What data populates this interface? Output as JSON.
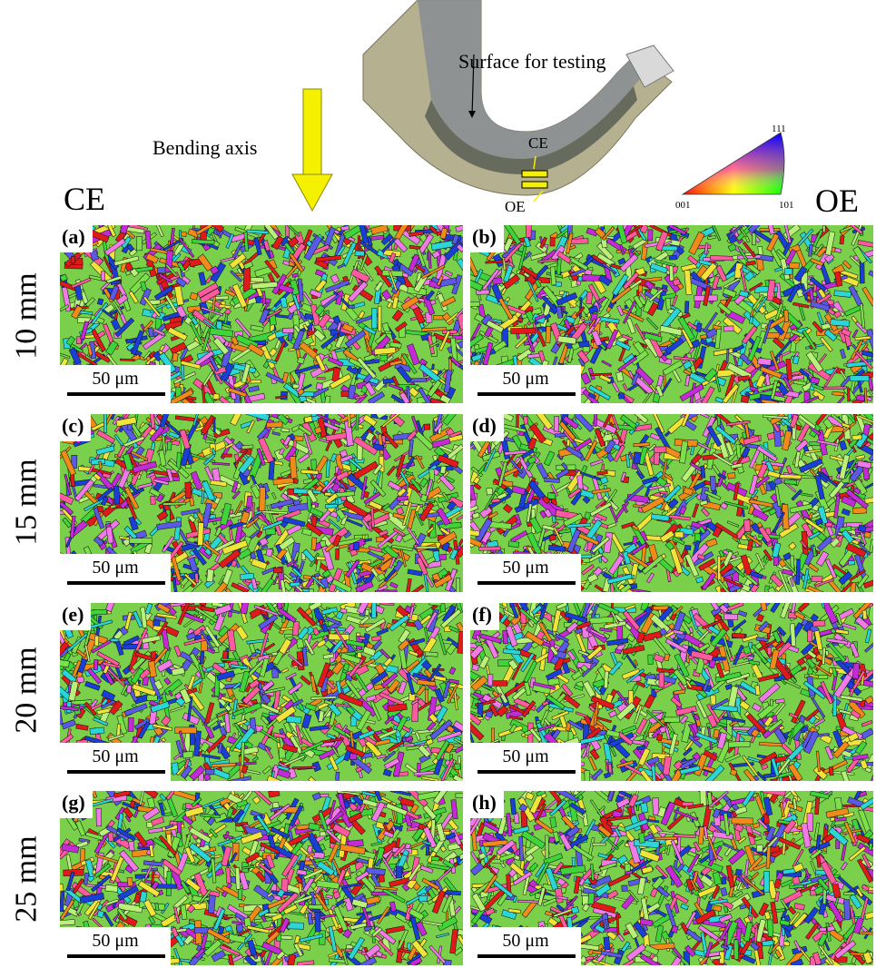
{
  "figure": {
    "bending_axis_label": "Bending axis",
    "surface_label": "Surface for testing",
    "specimen_ce_label": "CE",
    "specimen_oe_label": "OE",
    "column_left_label": "CE",
    "column_right_label": "OE",
    "ipf_legend": {
      "corner_001": "001",
      "corner_101": "101",
      "corner_111": "111"
    },
    "rows": [
      {
        "label": "10 mm"
      },
      {
        "label": "15 mm"
      },
      {
        "label": "20 mm"
      },
      {
        "label": "25 mm"
      }
    ],
    "panels": [
      {
        "tag": "(a)",
        "scale": "50 μm"
      },
      {
        "tag": "(b)",
        "scale": "50 μm"
      },
      {
        "tag": "(c)",
        "scale": "50 μm"
      },
      {
        "tag": "(d)",
        "scale": "50 μm"
      },
      {
        "tag": "(e)",
        "scale": "50 μm"
      },
      {
        "tag": "(f)",
        "scale": "50 μm"
      },
      {
        "tag": "(g)",
        "scale": "50 μm"
      },
      {
        "tag": "(h)",
        "scale": "50 μm"
      }
    ],
    "colors": {
      "arrow": "#f5f000",
      "grain_palette": [
        "#3fd43a",
        "#7be04a",
        "#1a3fd6",
        "#e01a1a",
        "#c22bd6",
        "#f07be6",
        "#f0e43a",
        "#2ad6d6",
        "#f08a1a",
        "#5a5ae6",
        "#b8f07a",
        "#ff5aa0"
      ]
    }
  }
}
